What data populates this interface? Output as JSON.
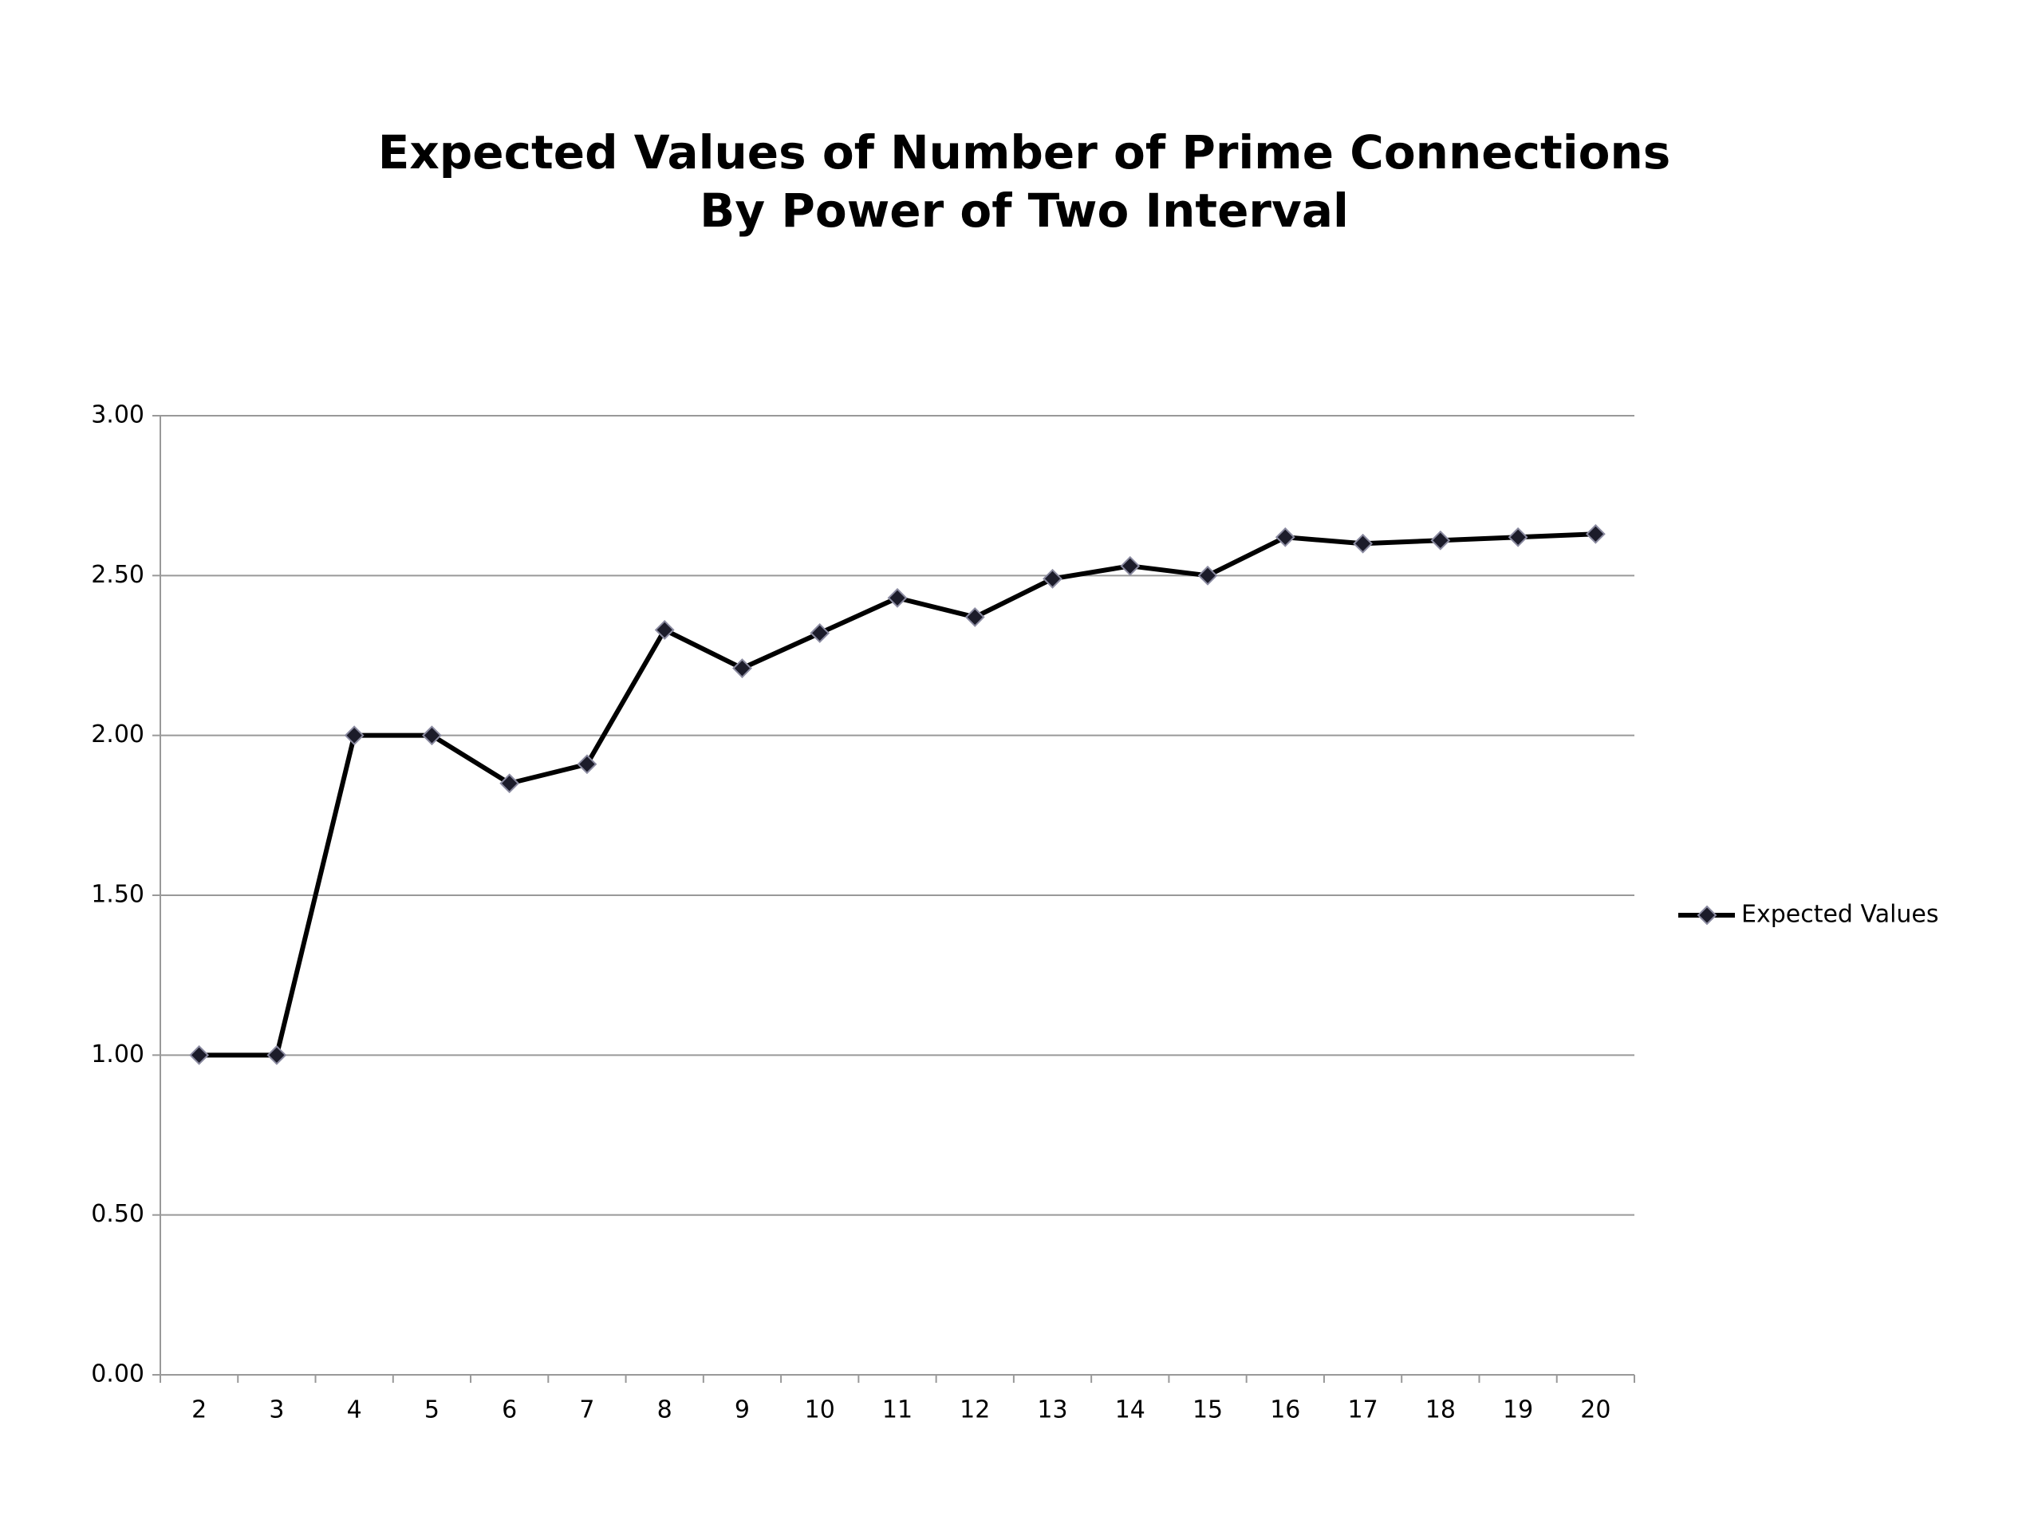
{
  "chart_data": {
    "type": "line",
    "title": [
      "Expected Values of Number of Prime Connections",
      "By Power of Two Interval"
    ],
    "categories": [
      "2",
      "3",
      "4",
      "5",
      "6",
      "7",
      "8",
      "9",
      "10",
      "11",
      "12",
      "13",
      "14",
      "15",
      "16",
      "17",
      "18",
      "19",
      "20"
    ],
    "series": [
      {
        "name": "Expected Values",
        "color": "#000000",
        "values": [
          1.0,
          1.0,
          2.0,
          2.0,
          1.85,
          1.91,
          2.33,
          2.21,
          2.32,
          2.43,
          2.37,
          2.49,
          2.53,
          2.5,
          2.62,
          2.6,
          2.61,
          2.62,
          2.63
        ]
      }
    ],
    "ylim": [
      0,
      3
    ],
    "yticks": [
      {
        "value": 0,
        "label": "0.00"
      },
      {
        "value": 0.5,
        "label": "0.50"
      },
      {
        "value": 1,
        "label": "1.00"
      },
      {
        "value": 1.5,
        "label": "1.50"
      },
      {
        "value": 2,
        "label": "2.00"
      },
      {
        "value": 2.5,
        "label": "2.50"
      },
      {
        "value": 3,
        "label": "3.00"
      }
    ],
    "grid": true,
    "legend": "right"
  }
}
